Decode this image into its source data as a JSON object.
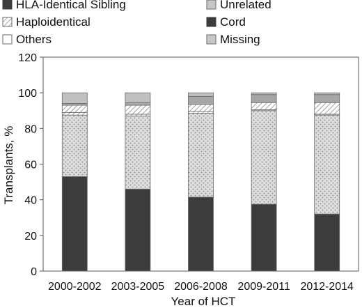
{
  "chart_data": {
    "type": "bar",
    "stacked": true,
    "title": "",
    "xlabel": "Year of HCT",
    "ylabel": "Transplants, %",
    "ylim": [
      0,
      120
    ],
    "yticks": [
      0,
      20,
      40,
      60,
      80,
      100,
      120
    ],
    "grid": false,
    "legend_position": "top",
    "categories": [
      "2000-2002",
      "2003-2005",
      "2006-2008",
      "2009-2011",
      "2012-2014"
    ],
    "series": [
      {
        "name": "HLA-Identical Sibling",
        "values": [
          53,
          46,
          41.5,
          37.5,
          32
        ],
        "fill": "#3c3c3c",
        "pattern": "solid"
      },
      {
        "name": "Unrelated",
        "values": [
          34.5,
          41,
          47,
          52.5,
          55.5
        ],
        "fill": "#d9d9d9",
        "pattern": "dots"
      },
      {
        "name": "Haploidentical",
        "values": [
          1.5,
          1,
          1,
          0.5,
          0.5
        ],
        "fill": "#ffffff",
        "pattern": "diagonal"
      },
      {
        "name": "Cord",
        "values": [
          4,
          5,
          4,
          4,
          6.5
        ],
        "fill": "#ffffff",
        "pattern": "diagonal"
      },
      {
        "name": "Others",
        "values": [
          1,
          1.5,
          4.5,
          4.5,
          4.5
        ],
        "fill": "#a6a6a6",
        "pattern": "solid"
      },
      {
        "name": "Missing",
        "values": [
          6,
          5.5,
          2,
          1,
          1
        ],
        "fill": "#c0c0c0",
        "pattern": "solid"
      }
    ],
    "legend": [
      {
        "label": "HLA-Identical Sibling",
        "swatch": "solid-dark"
      },
      {
        "label": "Unrelated",
        "swatch": "solid-light"
      },
      {
        "label": "Haploidentical",
        "swatch": "diagonal"
      },
      {
        "label": "Cord",
        "swatch": "solid-dark"
      },
      {
        "label": "Others",
        "swatch": "outline"
      },
      {
        "label": "Missing",
        "swatch": "solid-light"
      }
    ]
  }
}
